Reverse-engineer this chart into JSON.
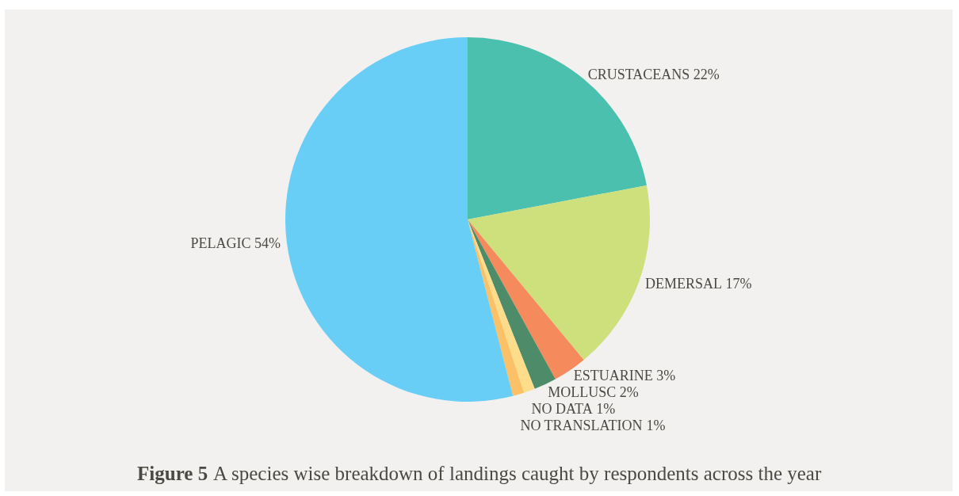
{
  "chart_data": {
    "type": "pie",
    "title": "Figure 5 A species wise breakdown of landings caught by respondents across the year",
    "categories": [
      "CRUSTACEANS",
      "DEMERSAL",
      "ESTUARINE",
      "MOLLUSC",
      "NO DATA",
      "NO TRANSLATION",
      "PELAGIC"
    ],
    "values": [
      22,
      17,
      3,
      2,
      1,
      1,
      54
    ],
    "value_labels": [
      "22%",
      "17%",
      "3%",
      "2%",
      "1%",
      "1%",
      "54%"
    ],
    "colors": [
      "#4cc0af",
      "#cde07c",
      "#f58a5d",
      "#4e8c69",
      "#fddd8a",
      "#fcc167",
      "#69cef6"
    ]
  }
}
